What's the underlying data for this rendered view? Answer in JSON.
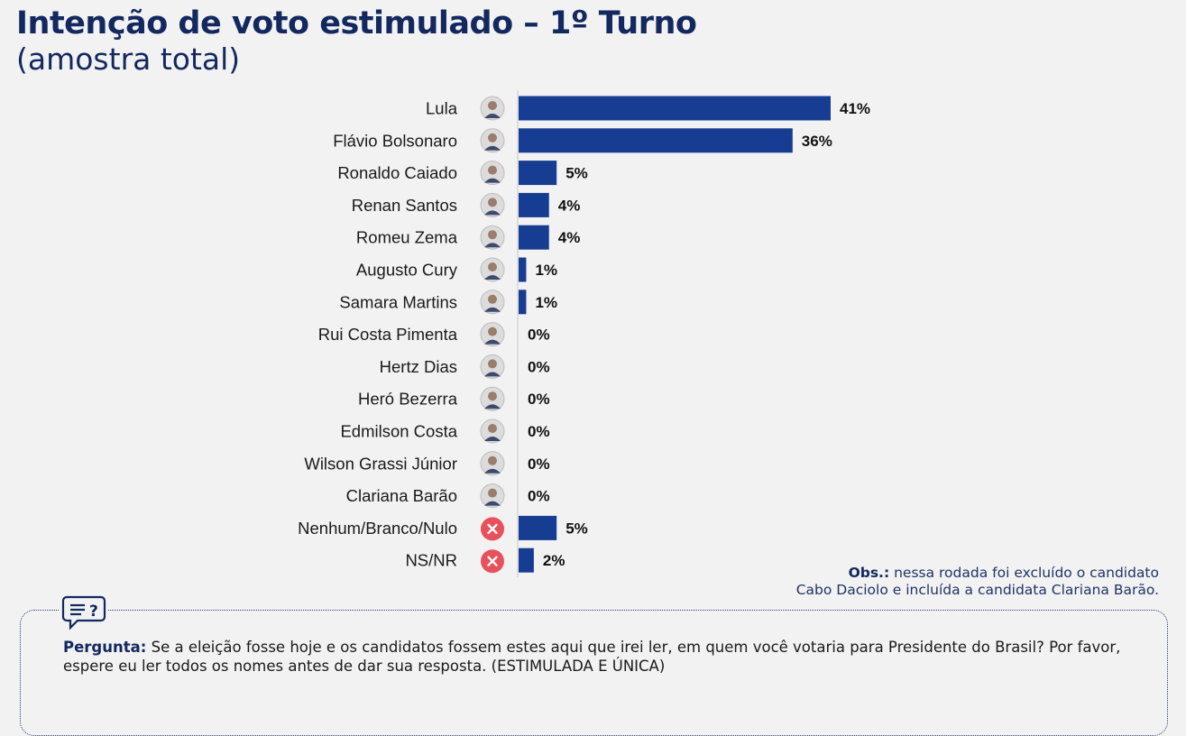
{
  "header": {
    "title": "Intenção de voto estimulado – 1º Turno",
    "subtitle": "(amostra total)"
  },
  "colors": {
    "bar": "#163d91",
    "title": "#13285f",
    "no_vote_icon": "#e8505b"
  },
  "chart_data": {
    "type": "bar",
    "orientation": "horizontal",
    "title": "Intenção de voto estimulado – 1º Turno",
    "subtitle": "(amostra total)",
    "categories": [
      "Lula",
      "Flávio Bolsonaro",
      "Ronaldo Caiado",
      "Renan Santos",
      "Romeu Zema",
      "Augusto Cury",
      "Samara Martins",
      "Rui Costa Pimenta",
      "Hertz Dias",
      "Heró Bezerra",
      "Edmilson Costa",
      "Wilson Grassi Júnior",
      "Clariana Barão",
      "Nenhum/Branco/Nulo",
      "NS/NR"
    ],
    "values": [
      41,
      36,
      5,
      4,
      4,
      1,
      1,
      0,
      0,
      0,
      0,
      0,
      0,
      5,
      2
    ],
    "value_labels": [
      "41%",
      "36%",
      "5%",
      "4%",
      "4%",
      "1%",
      "1%",
      "0%",
      "0%",
      "0%",
      "0%",
      "0%",
      "0%",
      "5%",
      "2%"
    ],
    "icons": [
      "avatar-icon",
      "avatar-icon",
      "avatar-icon",
      "avatar-icon",
      "avatar-icon",
      "avatar-icon",
      "avatar-icon",
      "avatar-icon",
      "avatar-icon",
      "avatar-icon",
      "avatar-icon",
      "avatar-icon",
      "avatar-icon",
      "close-x-icon",
      "close-x-icon"
    ],
    "xlim": [
      0,
      41
    ],
    "grid": false,
    "legend": "none"
  },
  "obs": {
    "label": "Obs.:",
    "line1": "nessa rodada foi excluído o candidato",
    "line2": "Cabo Daciolo e incluída a candidata Clariana Barão."
  },
  "question": {
    "label": "Pergunta:",
    "text": "Se a eleição fosse hoje e os candidatos fossem estes aqui que irei ler, em quem você votaria para Presidente do Brasil? Por favor, espere eu ler todos os nomes antes de dar sua resposta. (ESTIMULADA E ÚNICA)",
    "icon": "question-chat-icon"
  }
}
